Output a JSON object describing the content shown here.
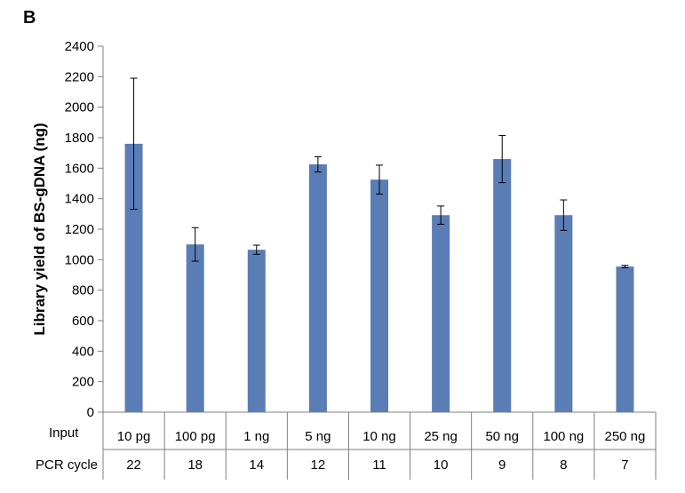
{
  "panel_label": "B",
  "colors": {
    "bar": "#5a7db5",
    "axis": "#7f7f7f",
    "error_bar": "#000000"
  },
  "chart_data": {
    "type": "bar",
    "title": "",
    "ylabel": "Library yield of BS-gDNA (ng)",
    "xlabel": "",
    "ylim": [
      0,
      2400
    ],
    "y_ticks": [
      0,
      200,
      400,
      600,
      800,
      1000,
      1200,
      1400,
      1600,
      1800,
      2000,
      2200,
      2400
    ],
    "grid": false,
    "legend": "none",
    "categories": [
      "10 pg",
      "100 pg",
      "1 ng",
      "5 ng",
      "10 ng",
      "25 ng",
      "50 ng",
      "100 ng",
      "250 ng"
    ],
    "series": [
      {
        "values": [
          1760,
          1100,
          1065,
          1625,
          1525,
          1292,
          1660,
          1292,
          955
        ],
        "error": [
          430,
          110,
          30,
          50,
          95,
          60,
          155,
          100,
          8
        ]
      }
    ],
    "table_rows": [
      {
        "label": "Input",
        "values": [
          "10 pg",
          "100 pg",
          "1 ng",
          "5 ng",
          "10 ng",
          "25 ng",
          "50 ng",
          "100 ng",
          "250 ng"
        ]
      },
      {
        "label": "PCR cycle",
        "values": [
          "22",
          "18",
          "14",
          "12",
          "11",
          "10",
          "9",
          "8",
          "7"
        ]
      }
    ]
  }
}
